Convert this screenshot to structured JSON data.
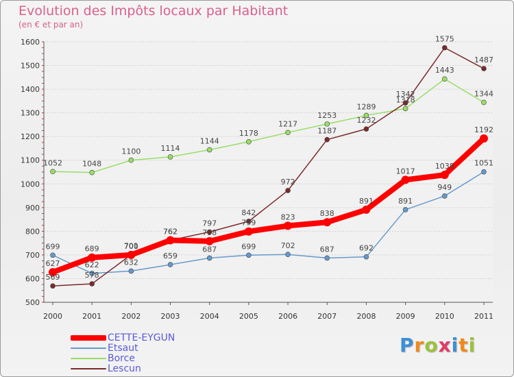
{
  "chart_data": {
    "type": "line",
    "title": "Evolution des Impôts locaux par Habitant",
    "subtitle": "(en € et par an)",
    "categories": [
      "2000",
      "2001",
      "2002",
      "2003",
      "2004",
      "2005",
      "2006",
      "2007",
      "2008",
      "2009",
      "2010",
      "2011"
    ],
    "ylim": [
      500,
      1600
    ],
    "yticks": [
      500,
      600,
      700,
      800,
      900,
      1000,
      1100,
      1200,
      1300,
      1400,
      1500,
      1600
    ],
    "grid": "horizontal",
    "legend_position": "bottom-left",
    "series": [
      {
        "name": "CETTE-EYGUN",
        "color": "#ff0000",
        "values": [
          627,
          689,
          700,
          762,
          758,
          799,
          823,
          838,
          891,
          1017,
          1038,
          1192
        ]
      },
      {
        "name": "Etsaut",
        "color": "#6699cc",
        "values": [
          699,
          622,
          632,
          659,
          687,
          699,
          702,
          687,
          692,
          891,
          949,
          1051
        ]
      },
      {
        "name": "Borce",
        "color": "#99dd66",
        "values": [
          1052,
          1048,
          1100,
          1114,
          1144,
          1178,
          1217,
          1253,
          1289,
          1318,
          1443,
          1344
        ]
      },
      {
        "name": "Lescun",
        "color": "#7a2a2a",
        "values": [
          569,
          578,
          701,
          762,
          797,
          842,
          972,
          1187,
          1232,
          1342,
          1575,
          1487
        ]
      }
    ]
  },
  "logo": {
    "letters": [
      "P",
      "r",
      "o",
      "x",
      "i",
      "t",
      "i"
    ],
    "colors": [
      "#3c8fd6",
      "#f08a1c",
      "#9cc23a",
      "#e23a6a",
      "#3c8fd6",
      "#f08a1c",
      "#9cc23a"
    ]
  }
}
